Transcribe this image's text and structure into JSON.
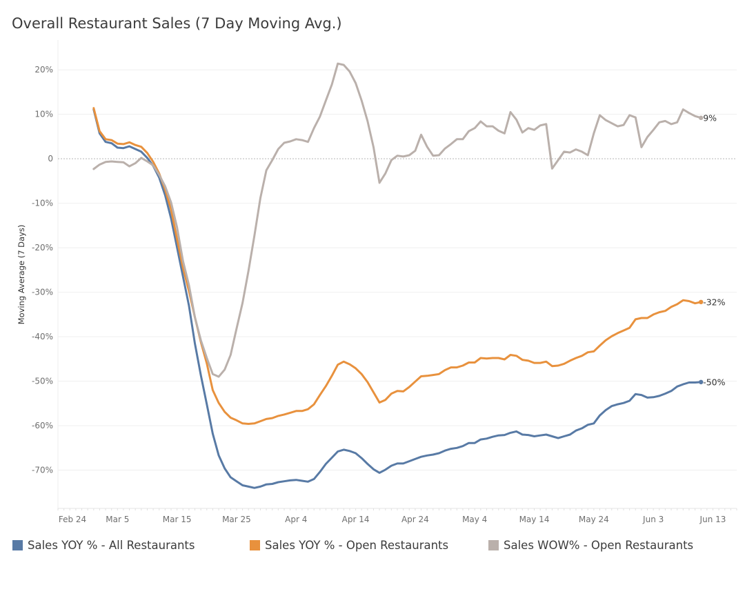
{
  "chart_data": {
    "type": "line",
    "title": "Overall Restaurant Sales (7 Day Moving Avg.)",
    "xlabel": "",
    "ylabel": "Moving Average (7 Days)",
    "ylim": [
      -78.6,
      26.7
    ],
    "xlim": [
      "Feb 24",
      "Jun 17"
    ],
    "y_ticks": [
      20,
      10,
      0,
      -10,
      -20,
      -30,
      -40,
      -50,
      -60,
      -70
    ],
    "y_tick_labels": [
      "20%",
      "10%",
      "0",
      "-10%",
      "-20%",
      "-30%",
      "-40%",
      "-50%",
      "-60%",
      "-70%"
    ],
    "x_tick_labels": [
      "Feb 24",
      "Mar 5",
      "Mar 15",
      "Mar 25",
      "Apr 4",
      "Apr 14",
      "Apr 24",
      "May 4",
      "May 14",
      "May 24",
      "Jun 3",
      "Jun 13"
    ],
    "grid": true,
    "reference_line": 0,
    "legend_position": "bottom",
    "x": [
      "Mar 1",
      "Mar 2",
      "Mar 3",
      "Mar 4",
      "Mar 5",
      "Mar 6",
      "Mar 7",
      "Mar 8",
      "Mar 9",
      "Mar 10",
      "Mar 11",
      "Mar 12",
      "Mar 13",
      "Mar 14",
      "Mar 15",
      "Mar 16",
      "Mar 17",
      "Mar 18",
      "Mar 19",
      "Mar 20",
      "Mar 21",
      "Mar 22",
      "Mar 23",
      "Mar 24",
      "Mar 25",
      "Mar 26",
      "Mar 27",
      "Mar 28",
      "Mar 29",
      "Mar 30",
      "Mar 31",
      "Apr 1",
      "Apr 2",
      "Apr 3",
      "Apr 4",
      "Apr 5",
      "Apr 6",
      "Apr 7",
      "Apr 8",
      "Apr 9",
      "Apr 10",
      "Apr 11",
      "Apr 12",
      "Apr 13",
      "Apr 14",
      "Apr 15",
      "Apr 16",
      "Apr 17",
      "Apr 18",
      "Apr 19",
      "Apr 20",
      "Apr 21",
      "Apr 22",
      "Apr 23",
      "Apr 24",
      "Apr 25",
      "Apr 26",
      "Apr 27",
      "Apr 28",
      "Apr 29",
      "Apr 30",
      "May 1",
      "May 2",
      "May 3",
      "May 4",
      "May 5",
      "May 6",
      "May 7",
      "May 8",
      "May 9",
      "May 10",
      "May 11",
      "May 12",
      "May 13",
      "May 14",
      "May 15",
      "May 16",
      "May 17",
      "May 18",
      "May 19",
      "May 20",
      "May 21",
      "May 22",
      "May 23",
      "May 24",
      "May 25",
      "May 26",
      "May 27",
      "May 28",
      "May 29",
      "May 30",
      "May 31",
      "Jun 1",
      "Jun 2",
      "Jun 3",
      "Jun 4",
      "Jun 5",
      "Jun 6",
      "Jun 7",
      "Jun 8",
      "Jun 9",
      "Jun 10",
      "Jun 11"
    ],
    "series": [
      {
        "name": "Sales YOY % - All Restaurants",
        "color": "#587aa5",
        "end_label": "-50%",
        "values": [
          11.1,
          5.7,
          3.8,
          3.5,
          2.5,
          2.4,
          2.8,
          2.2,
          1.6,
          0.2,
          -1.6,
          -4.2,
          -8.2,
          -13.4,
          -19.9,
          -26.5,
          -33,
          -41.5,
          -48.7,
          -55.2,
          -61.8,
          -66.7,
          -69.6,
          -71.6,
          -72.5,
          -73.4,
          -73.7,
          -74,
          -73.7,
          -73.2,
          -73.1,
          -72.7,
          -72.5,
          -72.3,
          -72.2,
          -72.4,
          -72.6,
          -72,
          -70.4,
          -68.6,
          -67.2,
          -65.8,
          -65.4,
          -65.7,
          -66.2,
          -67.3,
          -68.6,
          -69.8,
          -70.6,
          -69.9,
          -69,
          -68.5,
          -68.5,
          -68,
          -67.5,
          -67,
          -66.7,
          -66.5,
          -66.2,
          -65.6,
          -65.2,
          -65,
          -64.6,
          -63.9,
          -63.9,
          -63.1,
          -62.9,
          -62.5,
          -62.2,
          -62.1,
          -61.6,
          -61.3,
          -62,
          -62.1,
          -62.4,
          -62.2,
          -62,
          -62.4,
          -62.8,
          -62.4,
          -62,
          -61.1,
          -60.6,
          -59.8,
          -59.5,
          -57.7,
          -56.5,
          -55.6,
          -55.2,
          -54.9,
          -54.4,
          -52.9,
          -53.1,
          -53.7,
          -53.6,
          -53.3,
          -52.8,
          -52.2,
          -51.2,
          -50.7,
          -50.3,
          -50.3,
          -50.2
        ]
      },
      {
        "name": "Sales YOY % - Open Restaurants",
        "color": "#e8913d",
        "end_label": "-32%",
        "values": [
          11.4,
          6.2,
          4.4,
          4.2,
          3.4,
          3.3,
          3.7,
          3.1,
          2.7,
          1.3,
          -0.7,
          -3.3,
          -6.9,
          -11.4,
          -18,
          -24.5,
          -29.7,
          -35.6,
          -41.2,
          -46,
          -52,
          -54.9,
          -56.9,
          -58.2,
          -58.8,
          -59.5,
          -59.6,
          -59.5,
          -59,
          -58.5,
          -58.3,
          -57.8,
          -57.5,
          -57.1,
          -56.7,
          -56.7,
          -56.3,
          -55.2,
          -53.1,
          -51.1,
          -48.8,
          -46.3,
          -45.6,
          -46.2,
          -47.1,
          -48.4,
          -50.2,
          -52.5,
          -54.8,
          -54.2,
          -52.8,
          -52.2,
          -52.3,
          -51.3,
          -50.1,
          -48.9,
          -48.8,
          -48.6,
          -48.4,
          -47.5,
          -46.9,
          -46.9,
          -46.5,
          -45.8,
          -45.8,
          -44.8,
          -44.9,
          -44.8,
          -44.8,
          -45.1,
          -44.1,
          -44.3,
          -45.2,
          -45.4,
          -45.9,
          -45.9,
          -45.6,
          -46.6,
          -46.5,
          -46.1,
          -45.4,
          -44.8,
          -44.3,
          -43.5,
          -43.3,
          -42,
          -40.8,
          -39.9,
          -39.2,
          -38.6,
          -38,
          -36.1,
          -35.8,
          -35.8,
          -35,
          -34.5,
          -34.2,
          -33.3,
          -32.7,
          -31.8,
          -32,
          -32.5,
          -32.2
        ]
      },
      {
        "name": "Sales WOW% - Open Restaurants",
        "color": "#bab0ab",
        "end_label": "9%",
        "values": [
          -2.3,
          -1.3,
          -0.7,
          -0.6,
          -0.7,
          -0.8,
          -1.7,
          -1.0,
          0.2,
          -0.6,
          -1.5,
          -3.6,
          -6.2,
          -9.8,
          -15.4,
          -23,
          -28.4,
          -35.6,
          -40.8,
          -44.8,
          -48.4,
          -49,
          -47.4,
          -44.1,
          -38.2,
          -32.4,
          -25.2,
          -17.3,
          -8.8,
          -2.6,
          -0.3,
          2.2,
          3.6,
          3.9,
          4.4,
          4.2,
          3.8,
          6.9,
          9.5,
          13.1,
          16.7,
          21.4,
          21.1,
          19.6,
          17,
          13.1,
          8.5,
          2.6,
          -5.4,
          -3.3,
          -0.3,
          0.7,
          0.5,
          0.8,
          1.8,
          5.4,
          2.7,
          0.7,
          0.8,
          2.3,
          3.3,
          4.4,
          4.4,
          6.2,
          6.9,
          8.4,
          7.3,
          7.3,
          6.3,
          5.7,
          10.5,
          8.8,
          5.9,
          6.9,
          6.5,
          7.5,
          7.8,
          -2.2,
          -0.3,
          1.6,
          1.4,
          2.1,
          1.6,
          0.8,
          5.7,
          9.8,
          8.7,
          8.0,
          7.3,
          7.6,
          9.8,
          9.3,
          2.6,
          4.9,
          6.5,
          8.2,
          8.5,
          7.8,
          8.2,
          11.1,
          10.3,
          9.6,
          9.2
        ]
      }
    ]
  }
}
